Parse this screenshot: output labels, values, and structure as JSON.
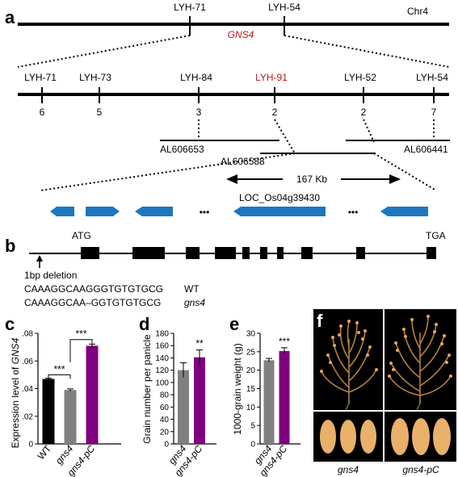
{
  "panels": {
    "a": "a",
    "b": "b",
    "c": "c",
    "d": "d",
    "e": "e",
    "f": "f"
  },
  "panel_a": {
    "chr_label": "Chr4",
    "top_markers": [
      "LYH-71",
      "LYH-54"
    ],
    "gene": "GNS4",
    "fine_markers": [
      "LYH-71",
      "LYH-73",
      "LYH-84",
      "LYH-91",
      "LYH-52",
      "LYH-54"
    ],
    "recombinants": [
      "6",
      "5",
      "3",
      "2",
      "2",
      "7"
    ],
    "bacs": [
      "AL606653",
      "AL606588",
      "AL606441"
    ],
    "distance": "167 Kb",
    "loc": "LOC_Os04g39430",
    "ellipsis": "•••",
    "colors": {
      "marker_red": "#c0151b",
      "gene_blue": "#1d77bf"
    }
  },
  "panel_b": {
    "start": "ATG",
    "stop": "TGA",
    "deletion_label": "1bp deletion",
    "seq_wt": "CAAAGGCAAGGGTGTGTGCG",
    "seq_wt_label": "WT",
    "seq_mut": "CAAAGGCAA–GGTGTGTGCG",
    "seq_mut_label": "gns4"
  },
  "chart_data": [
    {
      "type": "bar",
      "panel": "c",
      "ylabel_prefix": "Expression level of ",
      "ylabel_italic": "GNS4",
      "categories": [
        "WT",
        "gns4",
        "gns4-pC"
      ],
      "values": [
        0.047,
        0.039,
        0.071
      ],
      "errors": [
        0.0005,
        0.0008,
        0.0012
      ],
      "colors": [
        "#000000",
        "#808080",
        "#800080"
      ],
      "ylim": [
        0,
        0.08
      ],
      "ticks": [
        "0",
        ".02",
        ".04",
        ".06",
        ".08"
      ],
      "significance": [
        "***",
        "***"
      ]
    },
    {
      "type": "bar",
      "panel": "d",
      "ylabel": "Grain number per panicle",
      "categories": [
        "gns4",
        "gns4-pC"
      ],
      "values": [
        120,
        141
      ],
      "errors": [
        12,
        12
      ],
      "colors": [
        "#808080",
        "#800080"
      ],
      "ylim": [
        0,
        180
      ],
      "ticks": [
        "0",
        "20",
        "40",
        "60",
        "80",
        "100",
        "120",
        "140",
        "160",
        "180"
      ],
      "significance": [
        "**"
      ]
    },
    {
      "type": "bar",
      "panel": "e",
      "ylabel": "1000-grain weight (g)",
      "categories": [
        "gns4",
        "gns4-pC"
      ],
      "values": [
        22.7,
        25.2
      ],
      "errors": [
        0.5,
        0.9
      ],
      "colors": [
        "#808080",
        "#800080"
      ],
      "ylim": [
        0,
        30
      ],
      "ticks": [
        "0",
        "5",
        "10",
        "15",
        "20",
        "25",
        "30"
      ],
      "significance": [
        "***"
      ]
    }
  ],
  "panel_f": {
    "labels": [
      "gns4",
      "gns4-pC"
    ]
  }
}
